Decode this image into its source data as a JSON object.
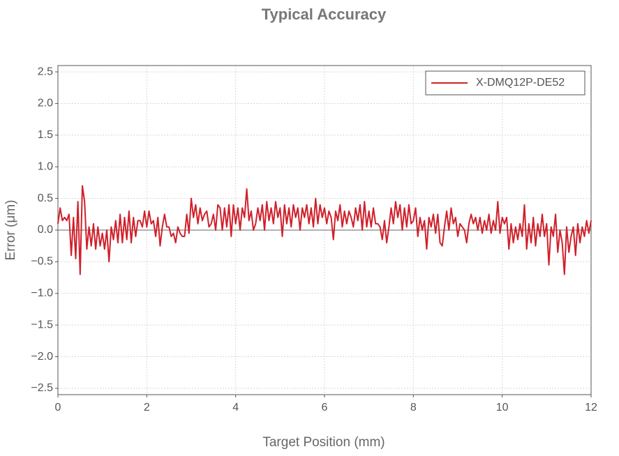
{
  "chart_data": {
    "type": "line",
    "title": "Typical Accuracy",
    "xlabel": "Target Position (mm)",
    "ylabel": "Error (μm)",
    "x": [
      0,
      0.05,
      0.1,
      0.15,
      0.2,
      0.25,
      0.3,
      0.35,
      0.4,
      0.45,
      0.5,
      0.55,
      0.6,
      0.65,
      0.7,
      0.75,
      0.8,
      0.85,
      0.9,
      0.95,
      1,
      1.05,
      1.1,
      1.15,
      1.2,
      1.25,
      1.3,
      1.35,
      1.4,
      1.45,
      1.5,
      1.55,
      1.6,
      1.65,
      1.7,
      1.75,
      1.8,
      1.85,
      1.9,
      1.95,
      2,
      2.05,
      2.1,
      2.15,
      2.2,
      2.25,
      2.3,
      2.35,
      2.4,
      2.45,
      2.5,
      2.55,
      2.6,
      2.65,
      2.7,
      2.75,
      2.8,
      2.85,
      2.9,
      2.95,
      3,
      3.05,
      3.1,
      3.15,
      3.2,
      3.25,
      3.3,
      3.35,
      3.4,
      3.45,
      3.5,
      3.55,
      3.6,
      3.65,
      3.7,
      3.75,
      3.8,
      3.85,
      3.9,
      3.95,
      4,
      4.05,
      4.1,
      4.15,
      4.2,
      4.25,
      4.3,
      4.35,
      4.4,
      4.45,
      4.5,
      4.55,
      4.6,
      4.65,
      4.7,
      4.75,
      4.8,
      4.85,
      4.9,
      4.95,
      5,
      5.05,
      5.1,
      5.15,
      5.2,
      5.25,
      5.3,
      5.35,
      5.4,
      5.45,
      5.5,
      5.55,
      5.6,
      5.65,
      5.7,
      5.75,
      5.8,
      5.85,
      5.9,
      5.95,
      6,
      6.05,
      6.1,
      6.15,
      6.2,
      6.25,
      6.3,
      6.35,
      6.4,
      6.45,
      6.5,
      6.55,
      6.6,
      6.65,
      6.7,
      6.75,
      6.8,
      6.85,
      6.9,
      6.95,
      7,
      7.05,
      7.1,
      7.15,
      7.2,
      7.25,
      7.3,
      7.35,
      7.4,
      7.45,
      7.5,
      7.55,
      7.6,
      7.65,
      7.7,
      7.75,
      7.8,
      7.85,
      7.9,
      7.95,
      8,
      8.05,
      8.1,
      8.15,
      8.2,
      8.25,
      8.3,
      8.35,
      8.4,
      8.45,
      8.5,
      8.55,
      8.6,
      8.65,
      8.7,
      8.75,
      8.8,
      8.85,
      8.9,
      8.95,
      9,
      9.05,
      9.1,
      9.15,
      9.2,
      9.25,
      9.3,
      9.35,
      9.4,
      9.45,
      9.5,
      9.55,
      9.6,
      9.65,
      9.7,
      9.75,
      9.8,
      9.85,
      9.9,
      9.95,
      10,
      10.05,
      10.1,
      10.15,
      10.2,
      10.25,
      10.3,
      10.35,
      10.4,
      10.45,
      10.5,
      10.55,
      10.6,
      10.65,
      10.7,
      10.75,
      10.8,
      10.85,
      10.9,
      10.95,
      11,
      11.05,
      11.1,
      11.15,
      11.2,
      11.25,
      11.3,
      11.35,
      11.4,
      11.45,
      11.5,
      11.55,
      11.6,
      11.65,
      11.7,
      11.75,
      11.8,
      11.85,
      11.9,
      11.95,
      12
    ],
    "series": [
      {
        "name": "X-DMQ12P-DE52",
        "color": "#d0202a",
        "values": [
          0.1,
          0.35,
          0.15,
          0.2,
          0.15,
          0.25,
          -0.4,
          0.2,
          -0.45,
          0.45,
          -0.7,
          0.7,
          0.45,
          -0.3,
          0.05,
          -0.25,
          0.1,
          -0.3,
          0.05,
          -0.25,
          -0.05,
          -0.3,
          0.0,
          -0.5,
          0.05,
          -0.15,
          0.15,
          -0.2,
          0.25,
          -0.2,
          0.2,
          -0.15,
          0.3,
          -0.2,
          0.2,
          -0.1,
          0.15,
          0.15,
          0.05,
          0.3,
          0.05,
          0.3,
          0.1,
          0.15,
          -0.1,
          0.2,
          -0.25,
          0.05,
          0.25,
          0.05,
          0.05,
          -0.1,
          -0.05,
          -0.2,
          0.05,
          -0.05,
          -0.1,
          -0.1,
          0.25,
          -0.05,
          0.5,
          0.2,
          0.4,
          0.1,
          0.35,
          0.15,
          0.25,
          0.3,
          0.05,
          0.1,
          0.25,
          0.0,
          0.4,
          0.35,
          0.0,
          0.35,
          0.05,
          0.4,
          -0.1,
          0.4,
          0.1,
          0.35,
          0.0,
          0.35,
          0.2,
          0.65,
          0.15,
          0.3,
          0.0,
          0.1,
          0.35,
          0.15,
          0.4,
          0.0,
          0.45,
          0.15,
          0.35,
          0.1,
          0.45,
          0.2,
          0.35,
          -0.1,
          0.4,
          0.1,
          0.35,
          0.05,
          0.4,
          0.2,
          0.35,
          0.0,
          0.35,
          0.2,
          0.4,
          0.1,
          0.35,
          0.05,
          0.5,
          0.1,
          0.4,
          0.2,
          0.35,
          0.1,
          0.3,
          0.2,
          -0.15,
          0.3,
          0.15,
          0.4,
          0.05,
          0.3,
          0.1,
          0.3,
          0.2,
          0.05,
          0.35,
          0.15,
          0.4,
          0.0,
          0.45,
          0.05,
          0.3,
          0.05,
          0.35,
          0.1,
          0.1,
          0.05,
          -0.15,
          0.15,
          -0.2,
          0.05,
          0.35,
          0.1,
          0.45,
          0.2,
          0.4,
          0.0,
          0.35,
          0.05,
          0.4,
          0.1,
          0.15,
          0.35,
          -0.1,
          0.2,
          0.0,
          0.15,
          -0.3,
          0.2,
          0.05,
          0.25,
          -0.05,
          0.25,
          -0.2,
          -0.25,
          0.05,
          0.3,
          0.0,
          0.35,
          0.1,
          0.2,
          -0.1,
          0.1,
          0.05,
          0.0,
          -0.2,
          0.1,
          0.25,
          0.1,
          0.2,
          0.0,
          0.2,
          -0.05,
          0.15,
          0.0,
          0.25,
          -0.05,
          0.15,
          0.0,
          0.45,
          -0.05,
          0.2,
          0.1,
          0.2,
          -0.3,
          0.1,
          -0.2,
          0.05,
          -0.15,
          0.1,
          -0.1,
          0.4,
          -0.3,
          0.1,
          -0.2,
          0.2,
          -0.25,
          0.1,
          -0.1,
          0.25,
          -0.1,
          0.1,
          -0.55,
          0.05,
          -0.1,
          0.25,
          -0.35,
          0.0,
          -0.2,
          -0.7,
          0.05,
          -0.35,
          -0.1,
          0.05,
          -0.4,
          0.1,
          -0.2,
          0.05,
          -0.1,
          0.15,
          -0.05,
          0.15
        ]
      }
    ],
    "xlim": [
      0,
      12
    ],
    "xticks": [
      0,
      2,
      4,
      6,
      8,
      10,
      12
    ],
    "ylim": [
      -2.6,
      2.6
    ],
    "yticks": [
      {
        "value": -2.5,
        "label": "−2.5"
      },
      {
        "value": -2.0,
        "label": "−2.0"
      },
      {
        "value": -1.5,
        "label": "−1.5"
      },
      {
        "value": -1.0,
        "label": "−1.0"
      },
      {
        "value": -0.5,
        "label": "−0.5"
      },
      {
        "value": 0,
        "label": "0.0"
      },
      0.5,
      {
        "value": 1,
        "label": "1.0"
      },
      1.5,
      {
        "value": 2,
        "label": "2.0"
      },
      2.5
    ],
    "grid": true,
    "legend": "upper right"
  }
}
